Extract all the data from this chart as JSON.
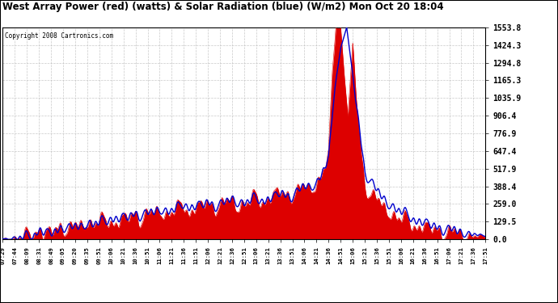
{
  "title": "West Array Power (red) (watts) & Solar Radiation (blue) (W/m2) Mon Oct 20 18:04",
  "copyright": "Copyright 2008 Cartronics.com",
  "bg_color": "#ffffff",
  "plot_bg_color": "#ffffff",
  "red_color": "#dd0000",
  "blue_color": "#0000cc",
  "text_color": "#000000",
  "grid_color": "#aaaaaa",
  "ymax": 1553.8,
  "ymin": 0.0,
  "ytick_labels": [
    "0.0",
    "129.5",
    "259.0",
    "388.4",
    "517.9",
    "647.4",
    "776.9",
    "906.4",
    "1035.9",
    "1165.3",
    "1294.8",
    "1424.3",
    "1553.8"
  ],
  "ytick_values": [
    0.0,
    129.5,
    259.0,
    388.4,
    517.9,
    647.4,
    776.9,
    906.4,
    1035.9,
    1165.3,
    1294.8,
    1424.3,
    1553.8
  ],
  "xtick_labels": [
    "07:29",
    "07:44",
    "08:09",
    "08:31",
    "08:49",
    "09:05",
    "09:20",
    "09:35",
    "09:51",
    "10:06",
    "10:21",
    "10:36",
    "10:51",
    "11:06",
    "11:21",
    "11:36",
    "11:51",
    "12:06",
    "12:21",
    "12:36",
    "12:51",
    "13:06",
    "13:21",
    "13:36",
    "13:51",
    "14:06",
    "14:21",
    "14:36",
    "14:51",
    "15:06",
    "15:21",
    "15:36",
    "15:51",
    "16:06",
    "16:21",
    "16:36",
    "16:51",
    "17:06",
    "17:21",
    "17:36",
    "17:51"
  ],
  "figsize": [
    6.9,
    3.75
  ],
  "dpi": 100
}
